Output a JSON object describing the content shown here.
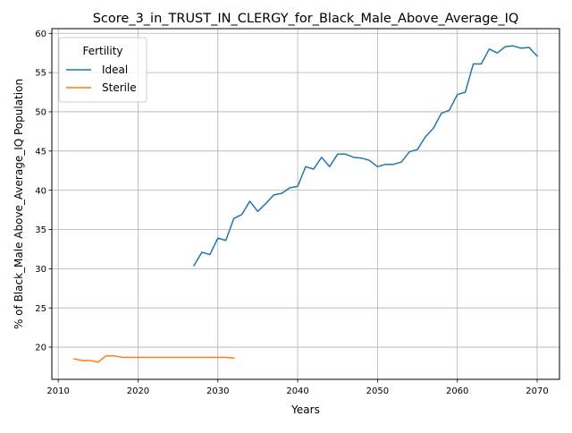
{
  "chart_data": {
    "type": "line",
    "title": "Score_3_in_TRUST_IN_CLERGY_for_Black_Male_Above_Average_IQ",
    "xlabel": "Years",
    "ylabel": "% of Black_Male Above_Average_IQ Population",
    "xlim": [
      2009.2,
      2072.8
    ],
    "ylim": [
      15.9,
      60.6
    ],
    "xticks": [
      2010,
      2020,
      2030,
      2040,
      2050,
      2060,
      2070
    ],
    "yticks": [
      20,
      25,
      30,
      35,
      40,
      45,
      50,
      55,
      60
    ],
    "grid": true,
    "legend": {
      "title": "Fertility",
      "placement": "top-left"
    },
    "series": [
      {
        "name": "Ideal",
        "color": "#1f77b4",
        "x": [
          2027,
          2028,
          2029,
          2030,
          2031,
          2032,
          2033,
          2034,
          2035,
          2036,
          2037,
          2038,
          2039,
          2040,
          2041,
          2042,
          2043,
          2044,
          2045,
          2046,
          2047,
          2048,
          2049,
          2050,
          2051,
          2052,
          2053,
          2054,
          2055,
          2056,
          2057,
          2058,
          2059,
          2060,
          2061,
          2062,
          2063,
          2064,
          2065,
          2066,
          2067,
          2068,
          2069,
          2070
        ],
        "y": [
          30.4,
          32.1,
          31.8,
          33.9,
          33.6,
          36.4,
          36.9,
          38.6,
          37.3,
          38.3,
          39.4,
          39.6,
          40.3,
          40.5,
          43.0,
          42.7,
          44.2,
          43.0,
          44.6,
          44.6,
          44.2,
          44.1,
          43.8,
          43.0,
          43.3,
          43.3,
          43.6,
          44.9,
          45.2,
          46.8,
          47.9,
          49.8,
          50.2,
          52.2,
          52.5,
          56.1,
          56.1,
          58.0,
          57.5,
          58.3,
          58.4,
          58.1,
          58.2,
          57.1
        ]
      },
      {
        "name": "Sterile",
        "color": "#ff7f0e",
        "x": [
          2012,
          2013,
          2014,
          2015,
          2016,
          2017,
          2018,
          2019,
          2020,
          2021,
          2022,
          2023,
          2024,
          2025,
          2026,
          2027,
          2028,
          2029,
          2030,
          2031,
          2032
        ],
        "y": [
          18.5,
          18.3,
          18.3,
          18.1,
          18.9,
          18.9,
          18.7,
          18.7,
          18.7,
          18.7,
          18.7,
          18.7,
          18.7,
          18.7,
          18.7,
          18.7,
          18.7,
          18.7,
          18.7,
          18.7,
          18.6
        ]
      }
    ]
  }
}
